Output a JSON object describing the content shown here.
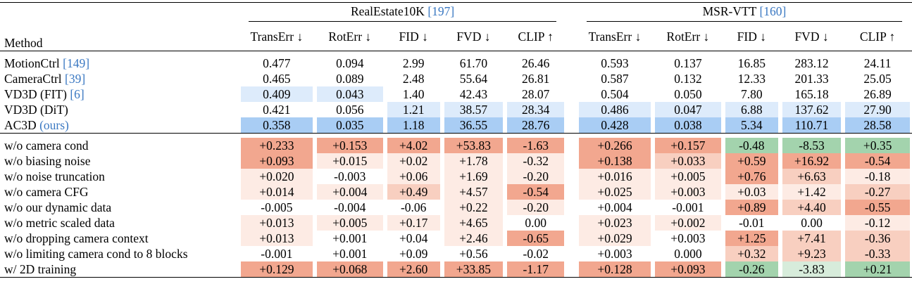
{
  "header": {
    "method": "Method",
    "groups": [
      {
        "name": "RealEstate10K",
        "cite": "197"
      },
      {
        "name": "MSR-VTT",
        "cite": "160"
      }
    ],
    "metrics": [
      "TransErr ↓",
      "RotErr ↓",
      "FID ↓",
      "FVD ↓",
      "CLIP ↑"
    ]
  },
  "colors": {
    "blue_strong": "#a9cdf4",
    "blue_light": "#ddebfb",
    "red_strong": "#f2a78f",
    "red_mid": "#f8cfc0",
    "red_light": "#fdebe4",
    "green_strong": "#a3d3ad",
    "green_light": "#d7ecdb",
    "ours_text": "#3a78c2"
  },
  "main_rows": [
    {
      "method": "MotionCtrl",
      "cite": "149",
      "suffix": "",
      "values": [
        "0.477",
        "0.094",
        "2.99",
        "61.70",
        "26.46",
        "0.593",
        "0.137",
        "16.85",
        "283.12",
        "24.11"
      ],
      "shades": [
        "",
        "",
        "",
        "",
        "",
        "",
        "",
        "",
        "",
        ""
      ]
    },
    {
      "method": "CameraCtrl",
      "cite": "39",
      "suffix": "",
      "values": [
        "0.465",
        "0.089",
        "2.48",
        "55.64",
        "26.81",
        "0.587",
        "0.132",
        "12.33",
        "201.33",
        "25.05"
      ],
      "shades": [
        "",
        "",
        "",
        "",
        "",
        "",
        "",
        "",
        "",
        ""
      ]
    },
    {
      "method": "VD3D (FIT)",
      "cite": "6",
      "suffix": "",
      "values": [
        "0.409",
        "0.043",
        "1.40",
        "42.43",
        "28.07",
        "0.504",
        "0.050",
        "7.80",
        "165.18",
        "26.89"
      ],
      "shades": [
        "bl",
        "bl",
        "",
        "",
        "",
        "",
        "",
        "",
        "",
        ""
      ]
    },
    {
      "method": "VD3D (DiT)",
      "cite": "",
      "suffix": "",
      "values": [
        "0.421",
        "0.056",
        "1.21",
        "38.57",
        "28.34",
        "0.486",
        "0.047",
        "6.88",
        "137.62",
        "27.90"
      ],
      "shades": [
        "",
        "",
        "bl",
        "bl",
        "bl",
        "bl",
        "bl",
        "bl",
        "bl",
        "bl"
      ]
    },
    {
      "method": "AC3D",
      "cite": "",
      "suffix": "(ours)",
      "values": [
        "0.358",
        "0.035",
        "1.18",
        "36.55",
        "28.76",
        "0.428",
        "0.038",
        "5.34",
        "110.71",
        "28.58"
      ],
      "shades": [
        "bs",
        "bs",
        "bs",
        "bs",
        "bs",
        "bs",
        "bs",
        "bs",
        "bs",
        "bs"
      ]
    }
  ],
  "ablation_rows": [
    {
      "method": "w/o camera cond",
      "values": [
        "+0.233",
        "+0.153",
        "+4.02",
        "+53.83",
        "-1.63",
        "+0.266",
        "+0.157",
        "-0.48",
        "-8.53",
        "+0.35"
      ],
      "shades": [
        "rs",
        "rs",
        "rs",
        "rs",
        "rs",
        "rs",
        "rs",
        "gs",
        "gs",
        "gs"
      ]
    },
    {
      "method": "w/o biasing noise",
      "values": [
        "+0.093",
        "+0.015",
        "+0.02",
        "+1.78",
        "-0.32",
        "+0.138",
        "+0.033",
        "+0.59",
        "+16.92",
        "-0.54"
      ],
      "shades": [
        "rs",
        "rl",
        "rl",
        "rl",
        "rl",
        "rs",
        "rm",
        "rs",
        "rs",
        "rs"
      ]
    },
    {
      "method": "w/o noise truncation",
      "values": [
        "+0.020",
        "-0.003",
        "+0.06",
        "+1.69",
        "-0.20",
        "+0.016",
        "+0.005",
        "+0.76",
        "+6.63",
        "-0.18"
      ],
      "shades": [
        "rl",
        "",
        "rl",
        "rl",
        "rl",
        "rl",
        "rl",
        "rs",
        "rm",
        "rl"
      ]
    },
    {
      "method": "w/o camera CFG",
      "values": [
        "+0.014",
        "+0.004",
        "+0.49",
        "+4.57",
        "-0.54",
        "+0.025",
        "+0.003",
        "+0.03",
        "+1.42",
        "-0.27"
      ],
      "shades": [
        "rl",
        "rl",
        "rm",
        "rl",
        "rs",
        "rl",
        "rl",
        "rl",
        "rl",
        "rm"
      ]
    },
    {
      "method": "w/o our dynamic data",
      "values": [
        "-0.005",
        "-0.004",
        "-0.06",
        "+0.22",
        "-0.20",
        "+0.004",
        "-0.001",
        "+0.89",
        "+4.40",
        "-0.55"
      ],
      "shades": [
        "",
        "",
        "",
        "rl",
        "rl",
        "",
        "",
        "rs",
        "rm",
        "rs"
      ]
    },
    {
      "method": "w/o metric scaled data",
      "values": [
        "+0.013",
        "+0.005",
        "+0.17",
        "+4.65",
        "0.00",
        "+0.023",
        "+0.002",
        "-0.01",
        "0.00",
        "-0.12"
      ],
      "shades": [
        "rl",
        "rl",
        "rl",
        "rl",
        "",
        "rl",
        "rl",
        "",
        "",
        "rl"
      ]
    },
    {
      "method": "w/o dropping camera context",
      "values": [
        "+0.013",
        "+0.001",
        "+0.04",
        "+2.46",
        "-0.65",
        "+0.029",
        "+0.003",
        "+1.25",
        "+7.41",
        "-0.36"
      ],
      "shades": [
        "rl",
        "",
        "",
        "rl",
        "rs",
        "rl",
        "",
        "rs",
        "rm",
        "rm"
      ]
    },
    {
      "method": "w/o limiting camera cond to 8 blocks",
      "values": [
        "-0.001",
        "+0.001",
        "+0.09",
        "+0.56",
        "-0.02",
        "+0.003",
        "0.000",
        "+0.32",
        "+9.23",
        "-0.33"
      ],
      "shades": [
        "",
        "",
        "",
        "",
        "",
        "",
        "",
        "rm",
        "rm",
        "rm"
      ]
    },
    {
      "method": "w/ 2D training",
      "values": [
        "+0.129",
        "+0.068",
        "+2.60",
        "+33.85",
        "-1.17",
        "+0.128",
        "+0.093",
        "-0.26",
        "-3.83",
        "+0.21"
      ],
      "shades": [
        "rs",
        "rs",
        "rs",
        "rs",
        "rs",
        "rs",
        "rs",
        "gs",
        "gl",
        "gs"
      ]
    }
  ]
}
